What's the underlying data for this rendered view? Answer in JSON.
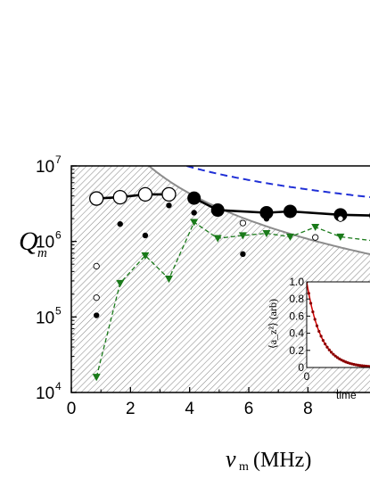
{
  "chart_data": {
    "type": "scatter",
    "title": "",
    "xlabel_symbol": "ν",
    "xlabel_sub": "m",
    "xlabel_unit": "(MHz)",
    "ylabel_symbol": "Q",
    "ylabel_sub": "m",
    "xlim": [
      0,
      10.4
    ],
    "ylim_log10": [
      4,
      7
    ],
    "yscale": "log",
    "xticks": [
      0,
      2,
      4,
      6,
      8
    ],
    "yticks": [
      {
        "exp": 4,
        "base": "10",
        "sup": "4"
      },
      {
        "exp": 5,
        "base": "10",
        "sup": "5"
      },
      {
        "exp": 6,
        "base": "10",
        "sup": "6"
      },
      {
        "exp": 7,
        "base": "10",
        "sup": "7"
      }
    ],
    "grid": false,
    "series": [
      {
        "name": "",
        "style": "open-large-line",
        "color": "#000000",
        "points": [
          [
            0.85,
            3700000
          ],
          [
            1.65,
            3850000
          ],
          [
            2.5,
            4200000
          ],
          [
            3.3,
            4200000
          ]
        ]
      },
      {
        "name": "",
        "style": "filled-large-line",
        "color": "#000000",
        "points": [
          [
            4.15,
            3750000
          ],
          [
            4.95,
            2600000
          ],
          [
            6.6,
            2400000
          ],
          [
            7.4,
            2500000
          ],
          [
            9.1,
            2250000
          ],
          [
            10.3,
            2200000
          ]
        ]
      },
      {
        "name": "",
        "style": "filled-small",
        "color": "#000000",
        "points": [
          [
            0.85,
            105000
          ],
          [
            1.65,
            1700000
          ],
          [
            2.5,
            1200000
          ],
          [
            3.3,
            3000000
          ],
          [
            4.15,
            2400000
          ],
          [
            5.8,
            680000
          ],
          [
            6.6,
            2000000
          ]
        ]
      },
      {
        "name": "",
        "style": "open-small",
        "color": "#000000",
        "points": [
          [
            0.85,
            470000
          ],
          [
            0.85,
            180000
          ],
          [
            5.8,
            1750000
          ],
          [
            8.25,
            1130000
          ],
          [
            9.1,
            2000000
          ]
        ]
      },
      {
        "name": "",
        "style": "green-triangle-dash",
        "color": "#1a7a1a",
        "points": [
          [
            0.85,
            16000
          ],
          [
            1.65,
            280000
          ],
          [
            2.5,
            650000
          ],
          [
            3.3,
            320000
          ],
          [
            4.15,
            1800000
          ],
          [
            4.95,
            1100000
          ],
          [
            5.8,
            1200000
          ],
          [
            6.6,
            1280000
          ],
          [
            7.4,
            1150000
          ],
          [
            8.25,
            1550000
          ],
          [
            9.1,
            1150000
          ],
          [
            10.4,
            1000000
          ]
        ]
      }
    ],
    "curves": [
      {
        "name": "",
        "style": "blue-dash",
        "color": "#1f2fd6",
        "form": "A/nu",
        "A": 39000000,
        "x_range": [
          3.9,
          10.4
        ]
      },
      {
        "name": "",
        "style": "gray-solid",
        "color": "#8c8c8c",
        "form": "A/nu^2",
        "A": 69000000,
        "x_range": [
          1.0,
          10.4
        ]
      }
    ],
    "hatched_region": "below-gray-curve",
    "inset": {
      "type": "line",
      "ylabel": "⟨a_z²⟩ (arb)",
      "xlabel": "time",
      "yticks": [
        "0",
        "0.2",
        "0.4",
        "0.6",
        "0.8",
        "1.0"
      ],
      "xticks": [
        "0"
      ],
      "ylim": [
        0,
        1
      ],
      "decay_points_color": "#8b0000",
      "fit_line_color": "#d40000"
    }
  }
}
